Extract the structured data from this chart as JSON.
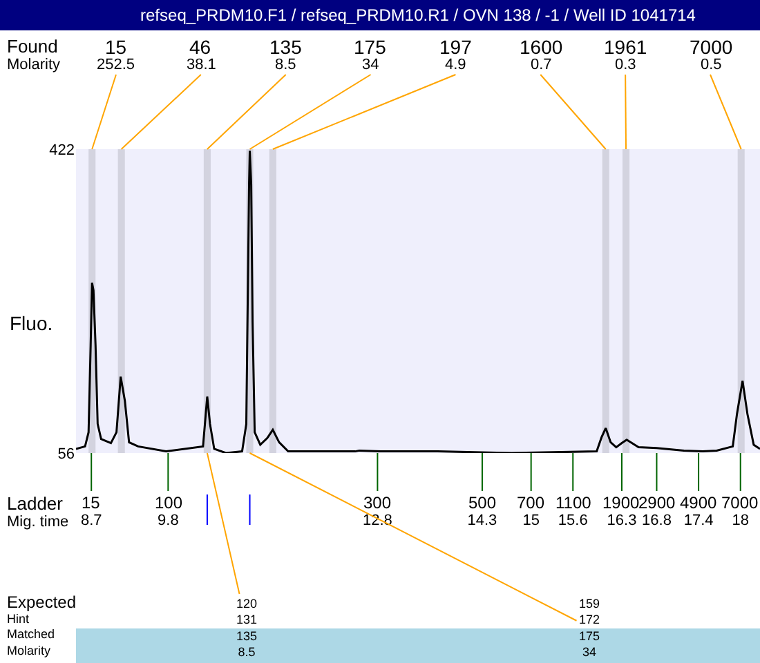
{
  "chart_data": {
    "type": "line",
    "title": "refseq_PRDM10.F1 / refseq_PRDM10.R1 / OVN 138 / -1 / Well ID 1041714",
    "ylabel": "Fluo.",
    "color": "#000000",
    "x": [
      8.48,
      8.61,
      8.66,
      8.69,
      8.71,
      8.73,
      8.76,
      8.79,
      8.84,
      8.98,
      9.06,
      9.12,
      9.18,
      9.24,
      9.37,
      9.77,
      10.3,
      10.36,
      10.4,
      10.46,
      10.63,
      10.86,
      10.92,
      10.96,
      10.97,
      10.99,
      11.01,
      11.04,
      11.12,
      11.22,
      11.3,
      11.39,
      11.52,
      12.48,
      12.54,
      12.84,
      13.53,
      13.66,
      14.72,
      15.94,
      16.01,
      16.07,
      16.14,
      16.22,
      16.3,
      16.37,
      16.54,
      16.8,
      17.19,
      17.46,
      17.66,
      17.89,
      17.95,
      18.03,
      18.1,
      18.19,
      18.28
    ],
    "values": [
      61,
      64,
      81,
      186,
      261,
      252,
      186,
      91,
      73,
      68,
      81,
      148,
      119,
      69,
      64,
      58,
      64,
      124,
      91,
      61,
      56,
      58,
      91,
      380,
      420,
      380,
      214,
      81,
      66,
      74,
      84,
      69,
      58,
      58,
      59,
      58,
      58,
      58,
      56,
      58,
      75,
      86,
      69,
      63,
      68,
      72,
      63,
      62,
      59,
      58,
      59,
      64,
      103,
      143,
      103,
      66,
      61
    ],
    "xlim": [
      8.48,
      18.28
    ],
    "ylim": [
      56,
      422
    ],
    "xticks": [
      8.7,
      9.8,
      12.8,
      14.3,
      15,
      15.6,
      16.3,
      16.8,
      17.4,
      18
    ],
    "yticks": [
      56,
      422
    ],
    "bands": [
      {
        "axis": "x",
        "from": 8.66,
        "to": 8.76,
        "label": "15\n252.5",
        "color": "#d3d3df"
      },
      {
        "axis": "x",
        "from": 9.08,
        "to": 9.18,
        "label": "46\n38.1",
        "color": "#d3d3df"
      },
      {
        "axis": "x",
        "from": 10.31,
        "to": 10.41,
        "label": "135\n8.5",
        "color": "#d3d3df"
      },
      {
        "axis": "x",
        "from": 10.92,
        "to": 11.02,
        "label": "175\n34",
        "color": "#d3d3df"
      },
      {
        "axis": "x",
        "from": 11.25,
        "to": 11.35,
        "label": "197\n4.9",
        "color": "#d3d3df"
      },
      {
        "axis": "x",
        "from": 16.02,
        "to": 16.12,
        "label": "1600\n0.7",
        "color": "#d3d3df"
      },
      {
        "axis": "x",
        "from": 16.31,
        "to": 16.41,
        "label": "1961\n0.3",
        "color": "#d3d3df"
      },
      {
        "axis": "x",
        "from": 17.96,
        "to": 18.06,
        "label": "7000\n0.5",
        "color": "#d3d3df"
      }
    ],
    "annotations": [
      "Found\nMolarity",
      "Ladder\nMig. time",
      "Expected\nHint\nMatched\nMolarity",
      {
        "text": "15",
        "x": 8.7,
        "y": 56
      },
      {
        "text": "100",
        "x": 9.8,
        "y": 56
      },
      {
        "text": "300",
        "x": 12.8,
        "y": 56
      },
      {
        "text": "500",
        "x": 14.3,
        "y": 56
      },
      {
        "text": "700",
        "x": 15,
        "y": 56
      },
      {
        "text": "1100",
        "x": 15.6,
        "y": 56
      },
      {
        "text": "1900",
        "x": 16.3,
        "y": 56
      },
      {
        "text": "2900",
        "x": 16.8,
        "y": 56
      },
      {
        "text": "4900",
        "x": 17.4,
        "y": 56
      },
      {
        "text": "7000",
        "x": 18,
        "y": 56
      },
      {
        "text": "120\n131\n135\n8.5",
        "x": 10.36,
        "y": 56
      },
      {
        "text": "159\n172\n175\n34",
        "x": 10.97,
        "y": 56
      }
    ]
  }
}
